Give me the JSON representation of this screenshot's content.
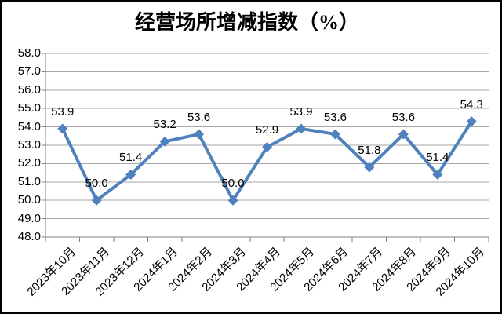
{
  "chart_data": {
    "type": "line",
    "title": "经营场所增减指数（%）",
    "categories": [
      "2023年10月",
      "2023年11月",
      "2023年12月",
      "2024年1月",
      "2024年2月",
      "2024年3月",
      "2024年4月",
      "2024年5月",
      "2024年6月",
      "2024年7月",
      "2024年8月",
      "2024年9月",
      "2024年10月"
    ],
    "values": [
      53.9,
      50.0,
      51.4,
      53.2,
      53.6,
      50.0,
      52.9,
      53.9,
      53.6,
      51.8,
      53.6,
      51.4,
      54.3
    ],
    "data_labels": [
      "53.9",
      "50.0",
      "51.4",
      "53.2",
      "53.6",
      "50.0",
      "52.9",
      "53.9",
      "53.6",
      "51.8",
      "53.6",
      "51.4",
      "54.3"
    ],
    "xlabel": "",
    "ylabel": "",
    "ylim": [
      48.0,
      58.0
    ],
    "ytick_step": 1.0,
    "ytick_labels": [
      "58.0",
      "57.0",
      "56.0",
      "55.0",
      "54.0",
      "53.0",
      "52.0",
      "51.0",
      "50.0",
      "49.0",
      "48.0"
    ],
    "grid": true,
    "legend_position": "none",
    "marker_shape": "diamond",
    "colors": {
      "line": "#4F81BD",
      "marker": "#4F81BD",
      "gridline": "#A6A6A6",
      "axis": "#808080",
      "text": "#000000",
      "background": "#FFFFFF",
      "frame": "#000000"
    }
  }
}
